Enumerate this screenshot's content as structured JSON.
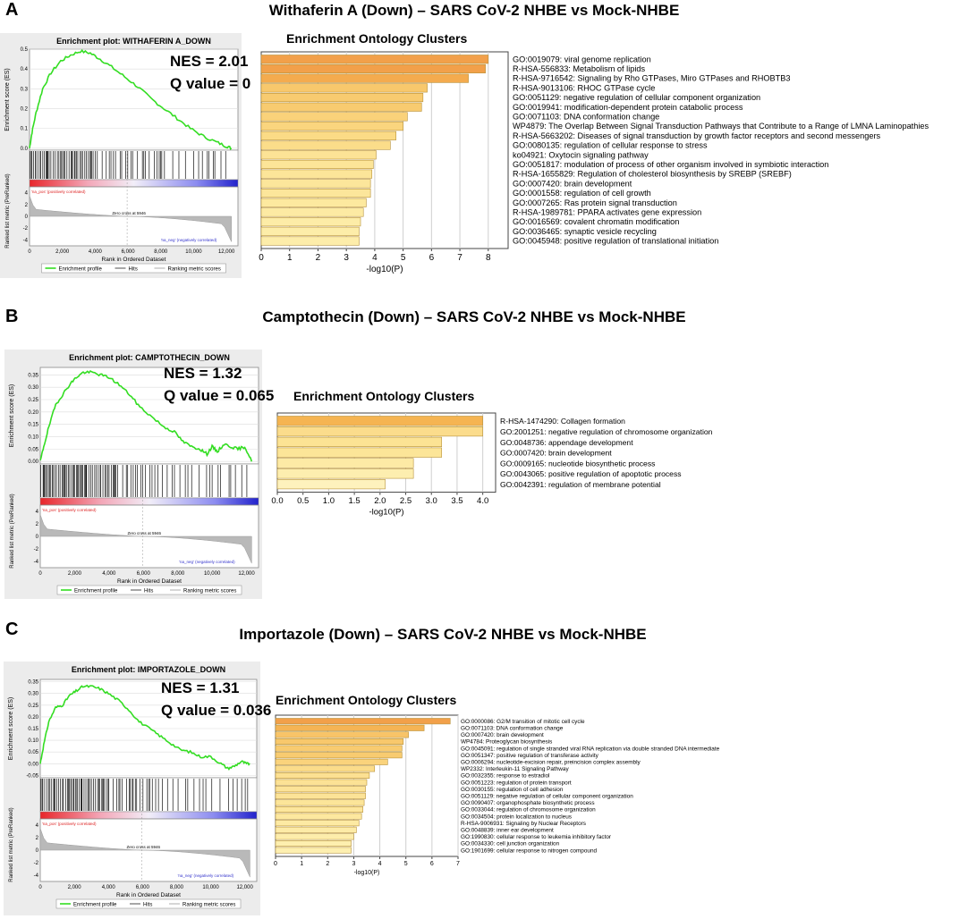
{
  "panels": [
    {
      "letter": "A",
      "title": "Withaferin A (Down) – SARS CoV-2 NHBE vs Mock-NHBE",
      "gsea": {
        "plot_title": "Enrichment plot: WITHAFERIN A_DOWN",
        "nes": "NES = 2.01",
        "q": "Q value = 0",
        "es_ylabel": "Enrichment score (ES)",
        "es_ticks": [
          "0.5",
          "0.4",
          "0.3",
          "0.2",
          "0.1",
          "0.0"
        ],
        "es_max": 0.5,
        "pos_label": "'na_pos' (positively correlated)",
        "neg_label": "'na_neg' (negatively correlated)",
        "zero_cross": "Zero cross at 5946",
        "rank_ylabel": "Ranked list metric (PreRanked)",
        "rank_ticks": [
          "4",
          "2",
          "0",
          "-2",
          "-4"
        ],
        "x_ticks": [
          "0",
          "2,000",
          "4,000",
          "6,000",
          "8,000",
          "10,000",
          "12,000"
        ],
        "xlabel": "Rank in Ordered Dataset",
        "legend": [
          "Enrichment profile",
          "Hits",
          "Ranking metric scores"
        ],
        "curve": [
          [
            0,
            0.0
          ],
          [
            150,
            0.08
          ],
          [
            400,
            0.18
          ],
          [
            800,
            0.3
          ],
          [
            1300,
            0.38
          ],
          [
            1900,
            0.44
          ],
          [
            2500,
            0.47
          ],
          [
            3100,
            0.49
          ],
          [
            3700,
            0.48
          ],
          [
            4300,
            0.45
          ],
          [
            5000,
            0.41
          ],
          [
            5800,
            0.36
          ],
          [
            6600,
            0.31
          ],
          [
            7400,
            0.25
          ],
          [
            8200,
            0.2
          ],
          [
            9000,
            0.15
          ],
          [
            9800,
            0.1
          ],
          [
            10600,
            0.06
          ],
          [
            11400,
            0.03
          ],
          [
            12000,
            0.01
          ],
          [
            12300,
            0.0
          ]
        ]
      },
      "chart_data": {
        "type": "bar",
        "title": "Enrichment Ontology Clusters",
        "xlabel": "-log10(P)",
        "xlim": [
          0,
          8.7
        ],
        "x_ticks": [
          "0",
          "1",
          "2",
          "3",
          "4",
          "5",
          "6",
          "7",
          "8"
        ],
        "categories": [
          "GO:0019079: viral genome replication",
          "R-HSA-556833: Metabolism of lipids",
          "R-HSA-9716542: Signaling by Rho GTPases, Miro GTPases and RHOBTB3",
          "R-HSA-9013106: RHOC GTPase cycle",
          "GO:0051129: negative regulation of cellular component organization",
          "GO:0019941: modification-dependent protein catabolic process",
          "GO:0071103: DNA conformation change",
          "WP4879: The Overlap Between Signal Transduction Pathways that Contribute to a Range of LMNA Laminopathies",
          "R-HSA-5663202: Diseases of signal transduction by growth factor receptors and second messengers",
          "GO:0080135: regulation of cellular response to stress",
          "ko04921: Oxytocin signaling pathway",
          "GO:0051817: modulation of process of other organism involved in symbiotic interaction",
          "R-HSA-1655829: Regulation of cholesterol biosynthesis by SREBP (SREBF)",
          "GO:0007420: brain development",
          "GO:0001558: regulation of cell growth",
          "GO:0007265: Ras protein signal transduction",
          "R-HSA-1989781: PPARA activates gene expression",
          "GO:0016569: covalent chromatin modification",
          "GO:0036465: synaptic vesicle recycling",
          "GO:0045948: positive regulation of translational initiation"
        ],
        "values": [
          8.0,
          7.9,
          7.3,
          5.85,
          5.7,
          5.65,
          5.15,
          5.0,
          4.75,
          4.55,
          4.05,
          3.95,
          3.9,
          3.85,
          3.85,
          3.7,
          3.6,
          3.5,
          3.45,
          3.45
        ],
        "colors": [
          "#f2a04a",
          "#f2a04a",
          "#f4ab4e",
          "#f8c86c",
          "#f8cb70",
          "#f8cb70",
          "#fad27a",
          "#fad57e",
          "#fbdb86",
          "#fbdd8a",
          "#fce396",
          "#fce598",
          "#fce599",
          "#fce69b",
          "#fce69b",
          "#fde99f",
          "#fdeaa3",
          "#fdeca7",
          "#fdeda9",
          "#fdedaa"
        ]
      }
    },
    {
      "letter": "B",
      "title": "Camptothecin (Down) – SARS CoV-2 NHBE vs Mock-NHBE",
      "gsea": {
        "plot_title": "Enrichment plot: CAMPTOTHECIN_DOWN",
        "nes": "NES = 1.32",
        "q": "Q value = 0.065",
        "es_ylabel": "Enrichment score (ES)",
        "es_ticks": [
          "0.35",
          "0.30",
          "0.25",
          "0.20",
          "0.15",
          "0.10",
          "0.05",
          "0.00"
        ],
        "es_max": 0.38,
        "pos_label": "'na_pos' (positively correlated)",
        "neg_label": "'na_neg' (negatively correlated)",
        "zero_cross": "Zero cross at 5946",
        "rank_ylabel": "Ranked list metric (PreRanked)",
        "rank_ticks": [
          "4",
          "2",
          "0",
          "-2",
          "-4"
        ],
        "x_ticks": [
          "0",
          "2,000",
          "4,000",
          "6,000",
          "8,000",
          "10,000",
          "12,000"
        ],
        "xlabel": "Rank in Ordered Dataset",
        "legend": [
          "Enrichment profile",
          "Hits",
          "Ranking metric scores"
        ],
        "curve": [
          [
            0,
            0.0
          ],
          [
            200,
            0.06
          ],
          [
            500,
            0.14
          ],
          [
            900,
            0.23
          ],
          [
            1300,
            0.27
          ],
          [
            1700,
            0.31
          ],
          [
            2100,
            0.34
          ],
          [
            2500,
            0.36
          ],
          [
            3000,
            0.36
          ],
          [
            3500,
            0.35
          ],
          [
            4000,
            0.34
          ],
          [
            4600,
            0.31
          ],
          [
            5200,
            0.27
          ],
          [
            5800,
            0.22
          ],
          [
            6500,
            0.18
          ],
          [
            7200,
            0.14
          ],
          [
            7800,
            0.12
          ],
          [
            8300,
            0.08
          ],
          [
            8800,
            0.06
          ],
          [
            9300,
            0.05
          ],
          [
            9700,
            0.03
          ],
          [
            10000,
            0.06
          ],
          [
            10300,
            0.04
          ],
          [
            10700,
            0.07
          ],
          [
            11100,
            0.06
          ],
          [
            11500,
            0.05
          ],
          [
            11900,
            0.06
          ],
          [
            12300,
            0.0
          ]
        ]
      },
      "chart_data": {
        "type": "bar",
        "title": "Enrichment Ontology Clusters",
        "xlabel": "-log10(P)",
        "xlim": [
          0,
          4.25
        ],
        "x_ticks": [
          "0.0",
          "0.5",
          "1.0",
          "1.5",
          "2.0",
          "2.5",
          "3.0",
          "3.5",
          "4.0"
        ],
        "categories": [
          "R-HSA-1474290: Collagen formation",
          "GO:2001251: negative regulation of chromosome organization",
          "GO:0048736: appendage development",
          "GO:0007420: brain development",
          "GO:0009165: nucleotide biosynthetic process",
          "GO:0043065: positive regulation of apoptotic process",
          "GO:0042391: regulation of membrane potential"
        ],
        "values": [
          4.0,
          4.0,
          3.2,
          3.2,
          2.65,
          2.65,
          2.1
        ],
        "colors": [
          "#f5b452",
          "#fbdc8c",
          "#fce394",
          "#fce598",
          "#fdeaa5",
          "#fdeeaf",
          "#fef2bd"
        ]
      }
    },
    {
      "letter": "C",
      "title": "Importazole (Down) – SARS CoV-2 NHBE vs Mock-NHBE",
      "gsea": {
        "plot_title": "Enrichment plot: IMPORTAZOLE_DOWN",
        "nes": "NES = 1.31",
        "q": "Q value = 0.036",
        "es_ylabel": "Enrichment score (ES)",
        "es_ticks": [
          "0.35",
          "0.30",
          "0.25",
          "0.20",
          "0.15",
          "0.10",
          "0.05",
          "0.00",
          "-0.05"
        ],
        "es_max": 0.36,
        "es_min": -0.06,
        "pos_label": "'na_pos' (positively correlated)",
        "neg_label": "'na_neg' (negatively correlated)",
        "zero_cross": "Zero cross at 5946",
        "rank_ylabel": "Ranked list metric (PreRanked)",
        "rank_ticks": [
          "4",
          "2",
          "0",
          "-2",
          "-4"
        ],
        "x_ticks": [
          "0",
          "2,000",
          "4,000",
          "6,000",
          "8,000",
          "10,000",
          "12,000"
        ],
        "xlabel": "Rank in Ordered Dataset",
        "legend": [
          "Enrichment profile",
          "Hits",
          "Ranking metric scores"
        ],
        "curve": [
          [
            0,
            0.0
          ],
          [
            200,
            0.08
          ],
          [
            500,
            0.18
          ],
          [
            900,
            0.24
          ],
          [
            1300,
            0.25
          ],
          [
            1700,
            0.29
          ],
          [
            2100,
            0.31
          ],
          [
            2500,
            0.33
          ],
          [
            3000,
            0.33
          ],
          [
            3500,
            0.32
          ],
          [
            4000,
            0.3
          ],
          [
            4600,
            0.27
          ],
          [
            5200,
            0.23
          ],
          [
            5800,
            0.18
          ],
          [
            6400,
            0.15
          ],
          [
            7000,
            0.12
          ],
          [
            7600,
            0.09
          ],
          [
            8200,
            0.06
          ],
          [
            8800,
            0.05
          ],
          [
            9400,
            0.03
          ],
          [
            10000,
            0.03
          ],
          [
            10600,
            0.0
          ],
          [
            11000,
            -0.02
          ],
          [
            11400,
            -0.01
          ],
          [
            11800,
            0.01
          ],
          [
            12100,
            0.0
          ],
          [
            12300,
            0.0
          ]
        ]
      },
      "chart_data": {
        "type": "bar",
        "title": "Enrichment Ontology Clusters",
        "xlabel": "-log10(P)",
        "xlim": [
          0,
          7
        ],
        "x_ticks": [
          "0",
          "1",
          "2",
          "3",
          "4",
          "5",
          "6",
          "7"
        ],
        "categories": [
          "GO:0000086: G2/M transition of mitotic cell cycle",
          "GO:0071103: DNA conformation change",
          "GO:0007420: brain development",
          "WP4784: Proteoglycan biosynthesis",
          "GO:0045091: regulation of single stranded viral RNA replication via double stranded DNA intermediate",
          "GO:0051347: positive regulation of transferase activity",
          "GO:0006294: nucleotide-excision repair, preincision complex assembly",
          "WP2332: Interleukin-11 Signaling Pathway",
          "GO:0032355: response to estradiol",
          "GO:0051223: regulation of protein transport",
          "GO:0030155: regulation of cell adhesion",
          "GO:0051129: negative regulation of cellular component organization",
          "GO:0090407: organophosphate biosynthetic process",
          "GO:0033044: regulation of chromosome organization",
          "GO:0034504: protein localization to nucleus",
          "R-HSA-9006931: Signaling by Nuclear Receptors",
          "GO:0048839: inner ear development",
          "GO:1990830: cellular response to leukemia inhibitory factor",
          "GO:0034330: cell junction organization",
          "GO:1901699: cellular response to nitrogen compound"
        ],
        "values": [
          6.7,
          5.7,
          5.1,
          4.9,
          4.85,
          4.85,
          4.3,
          3.8,
          3.6,
          3.5,
          3.45,
          3.45,
          3.4,
          3.35,
          3.3,
          3.2,
          3.1,
          3.0,
          2.9,
          2.9
        ],
        "colors": [
          "#f2a04a",
          "#f5b454",
          "#f8c468",
          "#f8c86c",
          "#f8cb70",
          "#f8cb70",
          "#fad37c",
          "#fbdc8a",
          "#fce092",
          "#fce295",
          "#fce397",
          "#fce397",
          "#fce599",
          "#fde69c",
          "#fde89f",
          "#fdeaa3",
          "#fdeba7",
          "#fdedab",
          "#fdefaf",
          "#fdefb0"
        ]
      }
    }
  ]
}
